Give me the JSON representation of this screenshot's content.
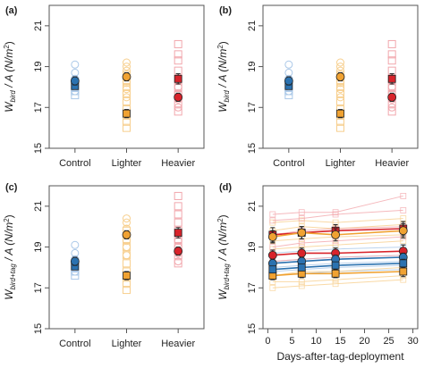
{
  "colors": {
    "control": "#2b72b0",
    "control_light": "#aac8e8",
    "lighter": "#f0a232",
    "lighter_light": "#f7cf8e",
    "heavier": "#d8232b",
    "heavier_light": "#f2a7ad"
  },
  "chart_data": [
    {
      "panel": "(a)",
      "type": "scatter",
      "ylabel_main": "W",
      "ylabel_sub": "bird",
      "ylabel_rest": " / A (N/m",
      "ylabel_sup": "2",
      "ylabel_end": ")",
      "categories": [
        "Control",
        "Lighter",
        "Heavier"
      ],
      "ylim": [
        15,
        22
      ],
      "yticks": [
        "15",
        "17",
        "19",
        "21"
      ],
      "groups": [
        {
          "category": "Control",
          "color": "control",
          "squares": [
            17.6,
            17.8,
            18.0,
            18.1,
            18.3
          ],
          "circles": [
            17.8,
            18.0,
            18.1,
            18.4,
            18.7,
            19.1
          ],
          "mean_square": 18.05,
          "mean_circle": 18.3,
          "se_square": 0.15,
          "se_circle": 0.2
        },
        {
          "category": "Lighter",
          "color": "lighter",
          "squares": [
            16.0,
            16.3,
            16.6,
            16.9,
            17.3,
            17.7,
            18.0,
            18.3,
            18.6
          ],
          "circles": [
            17.5,
            17.9,
            18.2,
            18.5,
            18.8,
            19.0,
            19.2
          ],
          "mean_square": 16.7,
          "mean_circle": 18.5,
          "se_square": 0.2,
          "se_circle": 0.2
        },
        {
          "category": "Heavier",
          "color": "heavier",
          "squares": [
            16.8,
            17.2,
            17.6,
            18.0,
            18.4,
            18.8,
            19.3,
            19.6,
            20.1
          ],
          "circles": [
            17.0,
            17.4,
            17.7,
            18.0,
            18.3
          ],
          "mean_square": 18.4,
          "mean_circle": 17.5,
          "se_square": 0.25,
          "se_circle": 0.2
        }
      ]
    },
    {
      "panel": "(b)",
      "type": "scatter",
      "ylabel_main": "W",
      "ylabel_sub": "bird",
      "ylabel_rest": " / A (N/m",
      "ylabel_sup": "2",
      "ylabel_end": ")",
      "categories": [
        "Control",
        "Lighter",
        "Heavier"
      ],
      "ylim": [
        15,
        22
      ],
      "yticks": [
        "15",
        "17",
        "19",
        "21"
      ],
      "groups": [
        {
          "category": "Control",
          "color": "control",
          "squares": [
            17.6,
            17.8,
            18.0,
            18.1,
            18.3
          ],
          "circles": [
            17.8,
            18.0,
            18.1,
            18.4,
            18.7,
            19.1
          ],
          "mean_square": 18.05,
          "mean_circle": 18.3,
          "se_square": 0.15,
          "se_circle": 0.2
        },
        {
          "category": "Lighter",
          "color": "lighter",
          "squares": [
            16.0,
            16.3,
            16.6,
            16.9,
            17.3,
            17.7,
            18.0,
            18.3,
            18.6
          ],
          "circles": [
            17.5,
            17.9,
            18.2,
            18.5,
            18.8,
            19.0,
            19.2
          ],
          "mean_square": 16.7,
          "mean_circle": 18.5,
          "se_square": 0.2,
          "se_circle": 0.2
        },
        {
          "category": "Heavier",
          "color": "heavier",
          "squares": [
            16.8,
            17.2,
            17.6,
            18.0,
            18.4,
            18.8,
            19.3,
            19.6,
            20.1
          ],
          "circles": [
            17.0,
            17.4,
            17.7,
            18.0,
            18.3
          ],
          "mean_square": 18.4,
          "mean_circle": 17.5,
          "se_square": 0.25,
          "se_circle": 0.2
        }
      ]
    },
    {
      "panel": "(c)",
      "type": "scatter",
      "ylabel_main": "W",
      "ylabel_sub": "bird+tag",
      "ylabel_rest": " / A (N/m",
      "ylabel_sup": "2",
      "ylabel_end": ")",
      "categories": [
        "Control",
        "Lighter",
        "Heavier"
      ],
      "ylim": [
        15,
        22
      ],
      "yticks": [
        "15",
        "17",
        "19",
        "21"
      ],
      "groups": [
        {
          "category": "Control",
          "color": "control",
          "squares": [
            17.6,
            17.8,
            18.0,
            18.1,
            18.3
          ],
          "circles": [
            17.8,
            18.0,
            18.1,
            18.4,
            18.7,
            19.1
          ],
          "mean_square": 18.05,
          "mean_circle": 18.3,
          "se_square": 0.15,
          "se_circle": 0.2
        },
        {
          "category": "Lighter",
          "color": "lighter",
          "squares": [
            16.9,
            17.2,
            17.5,
            17.8,
            18.2,
            18.6,
            19.0,
            19.4,
            19.8
          ],
          "circles": [
            18.6,
            19.0,
            19.3,
            19.6,
            19.9,
            20.2,
            20.4
          ],
          "mean_square": 17.6,
          "mean_circle": 19.6,
          "se_square": 0.2,
          "se_circle": 0.2
        },
        {
          "category": "Heavier",
          "color": "heavier",
          "squares": [
            18.2,
            18.6,
            19.0,
            19.4,
            19.8,
            20.2,
            20.6,
            21.0,
            21.5
          ],
          "circles": [
            18.3,
            18.7,
            19.0,
            19.3,
            19.6
          ],
          "mean_square": 19.7,
          "mean_circle": 18.8,
          "se_square": 0.25,
          "se_circle": 0.2
        }
      ]
    },
    {
      "panel": "(d)",
      "type": "line",
      "ylabel_main": "W",
      "ylabel_sub": "bird+tag",
      "ylabel_rest": " / A (N/m",
      "ylabel_sup": "2",
      "ylabel_end": ")",
      "xlabel": "Days-after-tag-deployment",
      "xlim": [
        -1,
        31
      ],
      "xticks": [
        "0",
        "5",
        "10",
        "15",
        "20",
        "25",
        "30"
      ],
      "ylim": [
        15,
        22
      ],
      "yticks": [
        "15",
        "17",
        "19",
        "21"
      ],
      "x": [
        1,
        7,
        14,
        28
      ],
      "individuals": [
        {
          "color": "control_light",
          "values": [
            17.6,
            17.7,
            17.8,
            17.9
          ]
        },
        {
          "color": "control_light",
          "values": [
            17.8,
            17.9,
            18.0,
            18.1
          ]
        },
        {
          "color": "control_light",
          "values": [
            18.0,
            18.1,
            18.2,
            18.3
          ]
        },
        {
          "color": "control_light",
          "values": [
            18.3,
            18.4,
            18.5,
            18.6
          ]
        },
        {
          "color": "control_light",
          "values": [
            18.7,
            18.8,
            18.9,
            19.0
          ]
        },
        {
          "color": "lighter_light",
          "values": [
            17.0,
            17.1,
            17.2,
            17.4
          ]
        },
        {
          "color": "lighter_light",
          "values": [
            17.3,
            17.3,
            17.4,
            17.6
          ]
        },
        {
          "color": "lighter_light",
          "values": [
            17.6,
            17.8,
            17.8,
            18.0
          ]
        },
        {
          "color": "lighter_light",
          "values": [
            18.9,
            19.0,
            19.1,
            19.3
          ]
        },
        {
          "color": "lighter_light",
          "values": [
            19.3,
            19.4,
            19.5,
            19.6
          ]
        },
        {
          "color": "lighter_light",
          "values": [
            19.8,
            20.0,
            19.9,
            20.1
          ]
        },
        {
          "color": "lighter_light",
          "values": [
            20.2,
            20.3,
            20.2,
            20.4
          ]
        },
        {
          "color": "heavier_light",
          "values": [
            18.3,
            18.4,
            18.5,
            18.6
          ]
        },
        {
          "color": "heavier_light",
          "values": [
            19.0,
            19.2,
            19.3,
            19.5
          ]
        },
        {
          "color": "heavier_light",
          "values": [
            19.6,
            19.8,
            19.9,
            20.0
          ]
        },
        {
          "color": "heavier_light",
          "values": [
            20.3,
            20.4,
            20.6,
            20.8
          ]
        },
        {
          "color": "heavier_light",
          "values": [
            20.6,
            20.7,
            20.7,
            21.5
          ]
        }
      ],
      "series": [
        {
          "color": "heavier",
          "marker": "square",
          "values": [
            19.6,
            19.7,
            19.8,
            19.9
          ],
          "se": [
            0.35,
            0.3,
            0.3,
            0.35
          ]
        },
        {
          "color": "heavier",
          "marker": "circle",
          "values": [
            18.6,
            18.7,
            18.7,
            18.8
          ],
          "se": [
            0.25,
            0.25,
            0.25,
            0.3
          ]
        },
        {
          "color": "lighter",
          "marker": "circle",
          "values": [
            19.5,
            19.7,
            19.6,
            19.8
          ],
          "se": [
            0.3,
            0.3,
            0.3,
            0.35
          ]
        },
        {
          "color": "lighter",
          "marker": "square",
          "values": [
            17.6,
            17.7,
            17.7,
            17.8
          ],
          "se": [
            0.2,
            0.2,
            0.2,
            0.25
          ]
        },
        {
          "color": "control",
          "marker": "circle",
          "values": [
            18.2,
            18.3,
            18.4,
            18.5
          ],
          "se": [
            0.2,
            0.2,
            0.2,
            0.2
          ]
        },
        {
          "color": "control",
          "marker": "square",
          "values": [
            17.9,
            18.0,
            18.1,
            18.2
          ],
          "se": [
            0.15,
            0.15,
            0.15,
            0.2
          ]
        }
      ]
    }
  ]
}
